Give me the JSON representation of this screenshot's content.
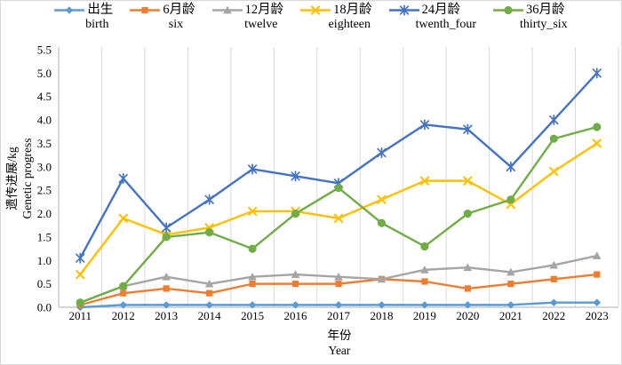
{
  "figure": {
    "background": "#FFFFFF",
    "border_color": "#D9D9D9",
    "gridline_color": "#D9D9D9",
    "axis_color": "#BFBFBF"
  },
  "chart_data": {
    "type": "line",
    "x": [
      2011,
      2012,
      2013,
      2014,
      2015,
      2016,
      2017,
      2018,
      2019,
      2020,
      2021,
      2022,
      2023
    ],
    "series": [
      {
        "name_zh": "出生",
        "name_en": "birth",
        "color": "#5B9BD5",
        "marker": "diamond",
        "values": [
          0.0,
          0.05,
          0.05,
          0.05,
          0.05,
          0.05,
          0.05,
          0.05,
          0.05,
          0.05,
          0.05,
          0.1,
          0.1
        ]
      },
      {
        "name_zh": "6月龄",
        "name_en": "six",
        "color": "#ED7D31",
        "marker": "square",
        "values": [
          0.05,
          0.3,
          0.4,
          0.3,
          0.5,
          0.5,
          0.5,
          0.6,
          0.55,
          0.4,
          0.5,
          0.6,
          0.7
        ]
      },
      {
        "name_zh": "12月龄",
        "name_en": "twelve",
        "color": "#A5A5A5",
        "marker": "triangle",
        "values": [
          0.1,
          0.45,
          0.65,
          0.5,
          0.65,
          0.7,
          0.65,
          0.6,
          0.8,
          0.85,
          0.75,
          0.9,
          1.1
        ]
      },
      {
        "name_zh": "18月龄",
        "name_en": "eighteen",
        "color": "#FFC000",
        "marker": "x",
        "values": [
          0.7,
          1.9,
          1.55,
          1.7,
          2.05,
          2.05,
          1.9,
          2.3,
          2.7,
          2.7,
          2.2,
          2.9,
          3.5
        ]
      },
      {
        "name_zh": "24月龄",
        "name_en": "twenth_four",
        "color": "#4472C4",
        "marker": "star",
        "values": [
          1.05,
          2.75,
          1.7,
          2.3,
          2.95,
          2.8,
          2.65,
          3.3,
          3.9,
          3.8,
          3.0,
          4.0,
          5.0
        ]
      },
      {
        "name_zh": "36月龄",
        "name_en": "thirty_six",
        "color": "#70AD47",
        "marker": "circle",
        "values": [
          0.1,
          0.45,
          1.5,
          1.6,
          1.25,
          2.0,
          2.55,
          1.8,
          1.3,
          2.0,
          2.3,
          3.6,
          3.85
        ]
      }
    ],
    "xlabel_zh": "年份",
    "xlabel_en": "Year",
    "ylabel_zh": "遗传进展/kg",
    "ylabel_en": "Genetic progress",
    "ylim": [
      0,
      5.5
    ],
    "ytick_step": 0.5,
    "ytick_decimals": 1,
    "grid": "vertical between categories",
    "legend_position": "top"
  }
}
